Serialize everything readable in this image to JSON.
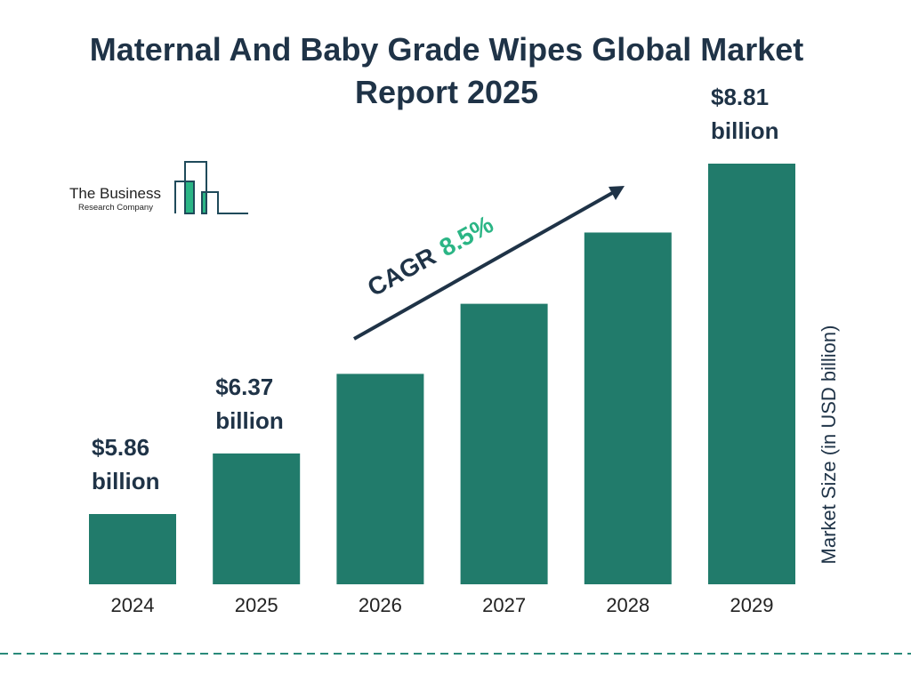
{
  "title": "Maternal And Baby Grade Wipes Global Market Report 2025",
  "logo": {
    "line1": "The Business",
    "line2": "Research Company"
  },
  "chart_data": {
    "type": "bar",
    "title": "Maternal And Baby Grade Wipes Global Market Report 2025",
    "categories": [
      "2024",
      "2025",
      "2026",
      "2027",
      "2028",
      "2029"
    ],
    "values": [
      5.86,
      6.37,
      7.04,
      7.63,
      8.23,
      8.81
    ],
    "data_labels": [
      "$5.86 billion",
      "$6.37 billion",
      "",
      "",
      "",
      "$8.81 billion"
    ],
    "label_lines": [
      [
        "$5.86",
        "billion"
      ],
      [
        "$6.37",
        "billion"
      ],
      null,
      null,
      null,
      [
        "$8.81",
        "billion"
      ]
    ],
    "xlabel": "",
    "ylabel": "Market Size (in USD billion)",
    "grid": false,
    "bar_color": "#217b6b",
    "annotation": {
      "prefix": "CAGR",
      "value": "8.5%",
      "value_color": "#2bb585"
    }
  }
}
